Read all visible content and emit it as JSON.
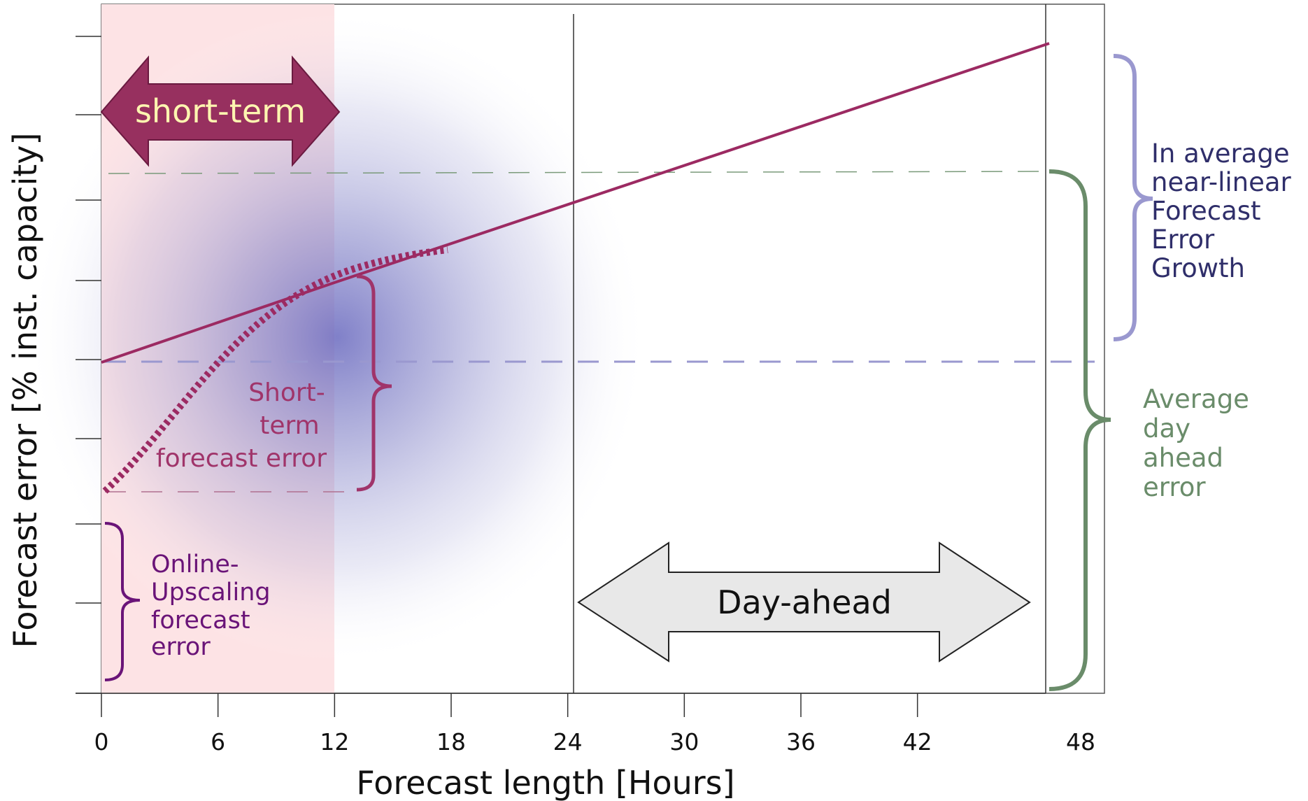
{
  "chart_data": {
    "type": "line",
    "xlabel": "Forecast length [Hours]",
    "ylabel": "Forecast error [% inst. capacity]",
    "xlim": [
      0,
      51
    ],
    "x_ticks": [
      0,
      6,
      12,
      18,
      24,
      30,
      36,
      42,
      48
    ],
    "x_tick_labels": [
      "0",
      "6",
      "12",
      "18",
      "24",
      "30",
      "36",
      "42",
      "48"
    ],
    "grid": false,
    "series": [
      {
        "style": "solid",
        "color": "#9c2a62",
        "x": [
          0,
          12,
          48
        ],
        "y": [
          0.48,
          0.59,
          0.95
        ]
      },
      {
        "style": "dotted",
        "color": "#9c2a62",
        "x": [
          0,
          6,
          12,
          18
        ],
        "y": [
          0.3,
          0.45,
          0.58,
          0.64
        ]
      }
    ],
    "reference_lines": [
      {
        "style": "dashed",
        "color": "#9a98cf",
        "y": 0.48
      },
      {
        "style": "dashed",
        "color": "#7a9a7a",
        "y": 0.755
      },
      {
        "style": "dashed",
        "color": "#b07090",
        "y": 0.29
      }
    ],
    "vertical_lines_x": [
      24,
      48
    ],
    "shaded_region": {
      "x": [
        0,
        12
      ],
      "color": "#fde3e5"
    },
    "annotations": {
      "short_term": "short-term",
      "day_ahead": "Day-ahead",
      "short_term_error": [
        "Short-",
        "term",
        "forecast error"
      ],
      "online_upscaling": [
        "Online-",
        "Upscaling",
        "forecast",
        "error"
      ],
      "near_linear": [
        "In average",
        "near-linear",
        "Forecast",
        "Error",
        "Growth"
      ],
      "day_ahead_error": [
        "Average",
        "day",
        "ahead",
        "error"
      ]
    },
    "colors": {
      "maroon": "#9c2a62",
      "short_term_fill": "#97305f",
      "short_term_text": "#fdf5b0",
      "lavender": "#9a98cf",
      "navy_text": "#2f2e6a",
      "green": "#6a8c6a",
      "purple": "#6a1478",
      "pink_shade": "#fde3e5",
      "gray_arrow": "#e8e8e8"
    }
  }
}
